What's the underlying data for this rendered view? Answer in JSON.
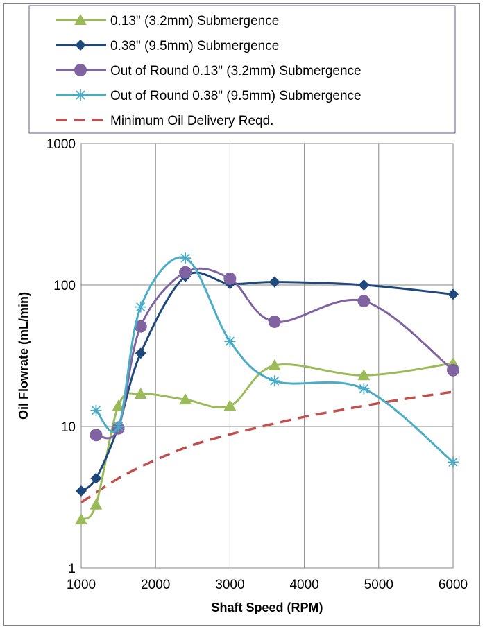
{
  "chart_data": {
    "type": "line",
    "title": "",
    "xlabel": "Shaft Speed (RPM)",
    "ylabel": "Oil Flowrate (mL/min)",
    "xlim": [
      1000,
      6000
    ],
    "ylim": [
      1,
      1000
    ],
    "yscale": "log",
    "grid": true,
    "legend_position": "top",
    "x_ticks": [
      "1000",
      "2000",
      "3000",
      "4000",
      "5000",
      "6000"
    ],
    "y_ticks": [
      "1",
      "10",
      "100",
      "1000"
    ],
    "series": [
      {
        "name": "0.13\" (3.2mm) Submergence",
        "color": "#9bbb59",
        "marker": "triangle",
        "line": "solid",
        "x": [
          1000,
          1200,
          1500,
          1800,
          2400,
          3000,
          3600,
          4800,
          6000
        ],
        "y": [
          2.2,
          2.8,
          14,
          17,
          15.5,
          14,
          27,
          23,
          28
        ]
      },
      {
        "name": "0.38\" (9.5mm) Submergence",
        "color": "#1f497d",
        "marker": "diamond",
        "line": "solid",
        "x": [
          1000,
          1200,
          1500,
          1800,
          2400,
          3000,
          3600,
          4800,
          6000
        ],
        "y": [
          3.5,
          4.3,
          10,
          33,
          115,
          102,
          105,
          100,
          86
        ]
      },
      {
        "name": "Out of Round 0.13\" (3.2mm) Submergence",
        "color": "#8064a2",
        "marker": "circle",
        "line": "solid",
        "x": [
          1200,
          1500,
          1800,
          2400,
          3000,
          3600,
          4800,
          6000
        ],
        "y": [
          8.7,
          9.7,
          51,
          123,
          111,
          55,
          77,
          25
        ]
      },
      {
        "name": "Out of Round 0.38\" (9.5mm) Submergence",
        "color": "#4bacc6",
        "marker": "star",
        "line": "solid",
        "x": [
          1200,
          1500,
          1800,
          2400,
          3000,
          3600,
          4800,
          6000
        ],
        "y": [
          13,
          10,
          70,
          155,
          40,
          21,
          18.5,
          5.6
        ]
      },
      {
        "name": "Minimum Oil Delivery Reqd.",
        "color": "#c0504d",
        "marker": "none",
        "line": "dashed",
        "x": [
          1000,
          1500,
          2000,
          2500,
          3000,
          3500,
          4000,
          4500,
          5000,
          5500,
          6000
        ],
        "y": [
          2.9,
          4.3,
          5.8,
          7.4,
          8.8,
          10.2,
          11.7,
          13.1,
          14.6,
          16.1,
          17.6
        ]
      }
    ]
  }
}
